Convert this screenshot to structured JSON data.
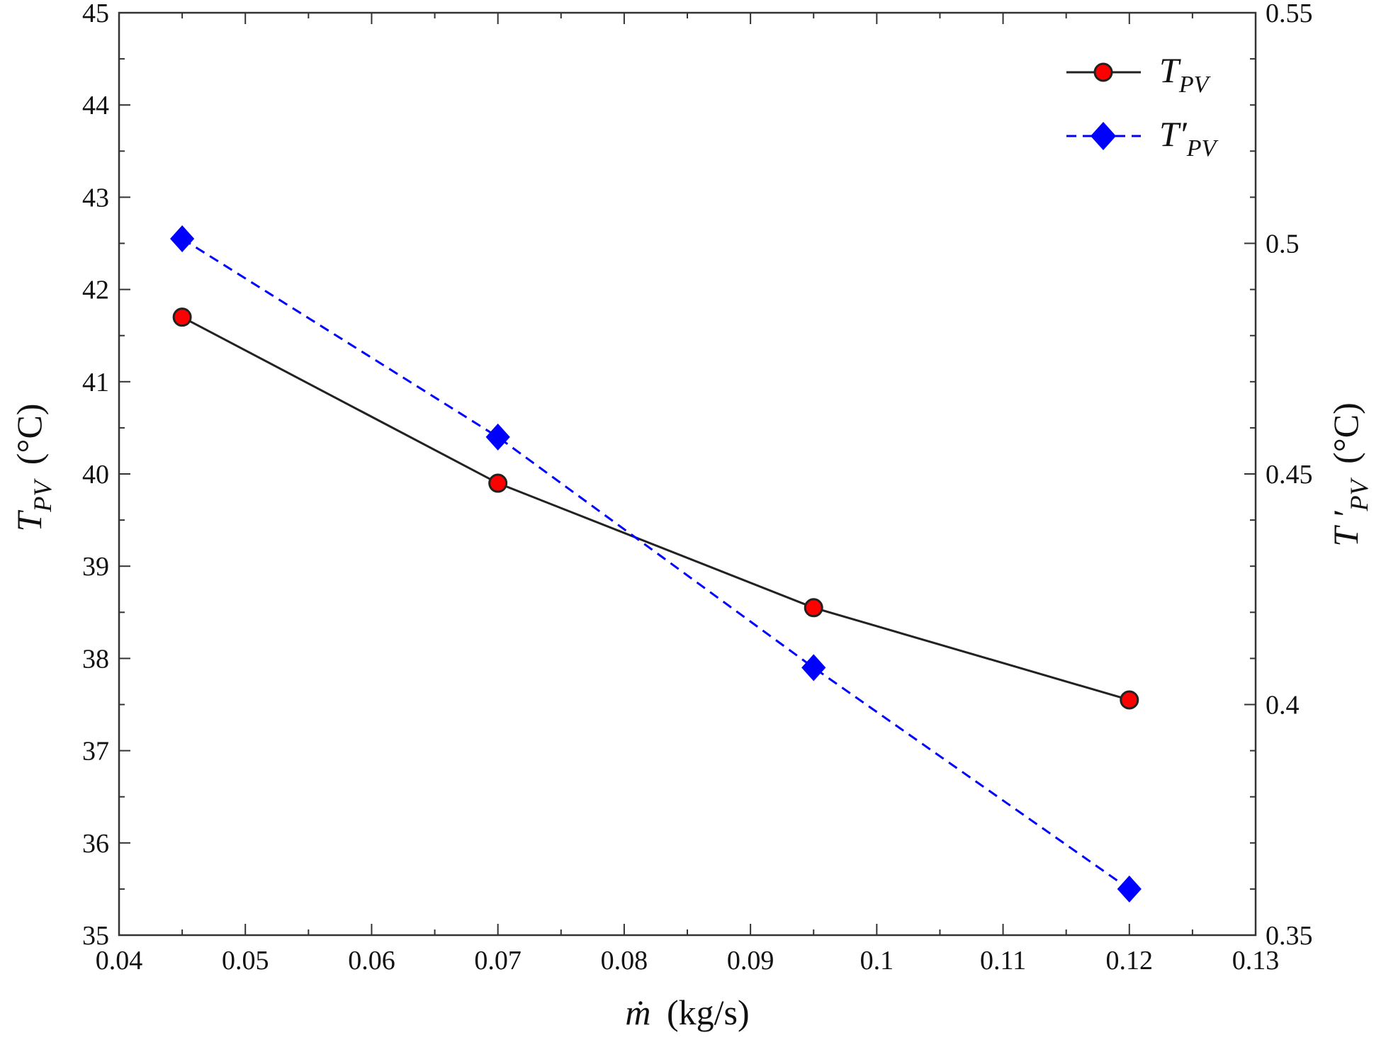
{
  "chart_data": {
    "type": "line",
    "x": [
      0.045,
      0.07,
      0.095,
      0.12
    ],
    "xlim": [
      0.04,
      0.13
    ],
    "xticks": [
      "0.04",
      "0.05",
      "0.06",
      "0.07",
      "0.08",
      "0.09",
      "0.1",
      "0.11",
      "0.12",
      "0.13"
    ],
    "xlabel": {
      "symbol": "ṁ",
      "unit": "(kg/s)"
    },
    "ylim_left": [
      35,
      45
    ],
    "yticks_left": [
      "35",
      "36",
      "37",
      "38",
      "39",
      "40",
      "41",
      "42",
      "43",
      "44",
      "45"
    ],
    "ylabel_left": {
      "symbol": "T",
      "subscript": "PV",
      "unit": "(°C)"
    },
    "ylim_right": [
      0.35,
      0.55
    ],
    "yticks_right": [
      "0.35",
      "0.4",
      "0.45",
      "0.5",
      "0.55"
    ],
    "ylabel_right": {
      "symbol": "T ′",
      "subscript": "PV",
      "unit": "(°C)"
    },
    "series": [
      {
        "name": "T_PV",
        "legend_symbol": "T",
        "legend_subscript": "PV",
        "axis": "left",
        "values": [
          41.7,
          39.9,
          38.55,
          37.55
        ],
        "color": "#222222",
        "marker": "circle",
        "marker_color": "#ff0000",
        "line": "solid"
      },
      {
        "name": "T'_PV",
        "legend_symbol": "T′",
        "legend_subscript": "PV",
        "axis": "right",
        "values": [
          0.501,
          0.458,
          0.408,
          0.36
        ],
        "color": "#0000ff",
        "marker": "diamond",
        "marker_color": "#0000ff",
        "line": "dashed"
      }
    ],
    "legend_position": "top-right",
    "grid": false
  }
}
